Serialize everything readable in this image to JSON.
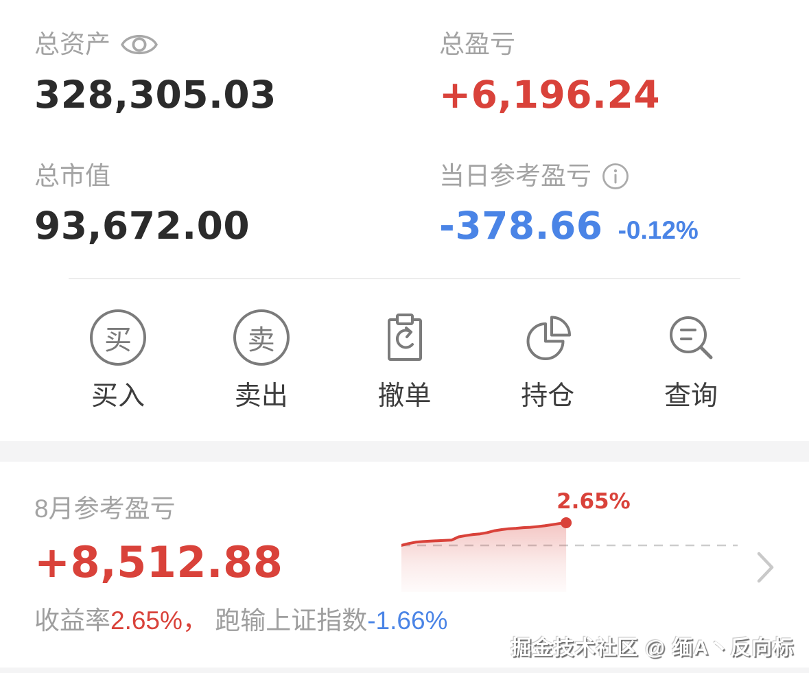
{
  "colors": {
    "accent_red": "#d9423a",
    "accent_blue": "#4a84e6",
    "label_gray": "#a3a3a3",
    "value_dark": "#2b2b2b",
    "icon_gray": "#7b7b7b"
  },
  "summary": {
    "total_assets": {
      "label": "总资产",
      "value": "328,305.03",
      "visibility_icon": "eye-icon"
    },
    "total_pnl": {
      "label": "总盈亏",
      "value": "+6,196.24"
    },
    "total_market_value": {
      "label": "总市值",
      "value": "93,672.00"
    },
    "today_pnl": {
      "label": "当日参考盈亏",
      "info_icon": "info-icon",
      "value": "-378.66",
      "percent": "-0.12%"
    }
  },
  "actions": [
    {
      "label": "买入",
      "icon": "buy-circle-icon",
      "glyph": "买"
    },
    {
      "label": "卖出",
      "icon": "sell-circle-icon",
      "glyph": "卖"
    },
    {
      "label": "撤单",
      "icon": "cancel-order-clipboard-icon"
    },
    {
      "label": "持仓",
      "icon": "positions-pie-icon"
    },
    {
      "label": "查询",
      "icon": "query-search-icon"
    }
  ],
  "month": {
    "label": "8月参考盈亏",
    "value": "+8,512.88",
    "chart_annotation": "2.65%",
    "more_icon": "chevron-right-icon",
    "summary": {
      "prefix": "收益率",
      "return_pct": "2.65%，",
      "middle": " 跑输上证指数",
      "index_pct": "-1.66%"
    }
  },
  "watermark": "掘金技术社区 @ 缅A丶反向标",
  "chart_data": {
    "type": "area",
    "series": [
      {
        "name": "收益率",
        "values": [
          0,
          0.22,
          0.38,
          0.45,
          0.5,
          0.55,
          0.58,
          0.62,
          1.0,
          1.15,
          1.28,
          1.35,
          1.5,
          1.72,
          1.85,
          1.95,
          2.0,
          2.08,
          2.12,
          2.2,
          2.3,
          2.42,
          2.55,
          2.65
        ]
      }
    ],
    "baseline": 0,
    "ylim": [
      0,
      2.65
    ],
    "annotation": "2.65%",
    "annotation_color": "#d9423a",
    "line_color": "#d9423a",
    "zero_line": "dashed-gray",
    "data_fraction_of_axis": 0.49,
    "legend": "none"
  }
}
